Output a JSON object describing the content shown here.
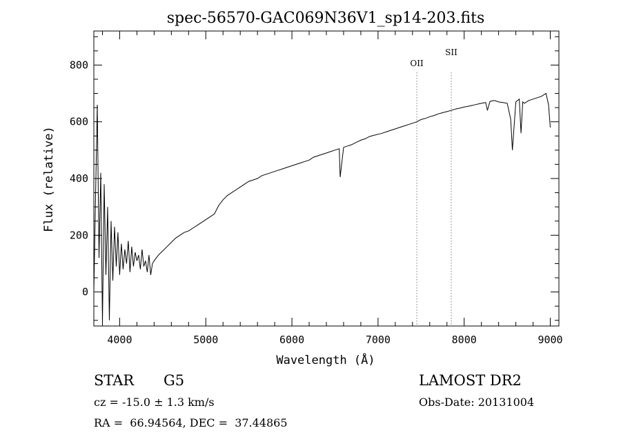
{
  "chart_data": {
    "type": "line",
    "title": "spec-56570-GAC069N36V1_sp14-203.fits",
    "xlabel": "Wavelength (Å)",
    "ylabel": "Flux (relative)",
    "xlim": [
      3700,
      9100
    ],
    "ylim": [
      -120,
      920
    ],
    "x_ticks": [
      4000,
      5000,
      6000,
      7000,
      8000,
      9000
    ],
    "y_ticks": [
      0,
      200,
      400,
      600,
      800
    ],
    "grid": false,
    "series": [
      {
        "x": [
          3700,
          3720,
          3740,
          3760,
          3780,
          3800,
          3820,
          3840,
          3860,
          3880,
          3900,
          3920,
          3940,
          3960,
          3980,
          4000,
          4020,
          4040,
          4060,
          4080,
          4100,
          4120,
          4140,
          4160,
          4180,
          4200,
          4220,
          4240,
          4260,
          4280,
          4300,
          4320,
          4340,
          4360,
          4380,
          4400,
          4450,
          4500,
          4550,
          4600,
          4650,
          4700,
          4750,
          4800,
          4850,
          4900,
          4950,
          5000,
          5050,
          5100,
          5150,
          5200,
          5250,
          5300,
          5350,
          5400,
          5450,
          5500,
          5550,
          5600,
          5650,
          5700,
          5750,
          5800,
          5850,
          5900,
          5950,
          6000,
          6050,
          6100,
          6150,
          6200,
          6250,
          6300,
          6350,
          6400,
          6450,
          6500,
          6550,
          6560,
          6600,
          6650,
          6700,
          6750,
          6800,
          6850,
          6900,
          6950,
          7000,
          7050,
          7100,
          7150,
          7200,
          7250,
          7300,
          7350,
          7400,
          7450,
          7500,
          7550,
          7600,
          7650,
          7700,
          7750,
          7800,
          7850,
          7900,
          7950,
          8000,
          8050,
          8100,
          8150,
          8200,
          8250,
          8270,
          8300,
          8350,
          8400,
          8450,
          8500,
          8540,
          8560,
          8600,
          8640,
          8660,
          8680,
          8700,
          8750,
          8800,
          8850,
          8900,
          8950,
          8980,
          9000
        ],
        "y": [
          0,
          340,
          660,
          120,
          420,
          -110,
          380,
          60,
          300,
          -100,
          250,
          40,
          230,
          90,
          210,
          60,
          170,
          80,
          150,
          100,
          180,
          70,
          160,
          90,
          140,
          110,
          130,
          80,
          150,
          90,
          110,
          70,
          130,
          60,
          100,
          110,
          130,
          145,
          160,
          175,
          190,
          200,
          210,
          215,
          225,
          235,
          245,
          255,
          265,
          275,
          305,
          325,
          340,
          350,
          360,
          370,
          380,
          390,
          395,
          400,
          410,
          415,
          420,
          425,
          430,
          435,
          440,
          445,
          450,
          455,
          460,
          465,
          475,
          480,
          485,
          490,
          495,
          500,
          505,
          405,
          510,
          515,
          520,
          528,
          535,
          540,
          548,
          552,
          556,
          560,
          565,
          570,
          575,
          580,
          585,
          590,
          595,
          600,
          608,
          612,
          618,
          622,
          628,
          632,
          636,
          640,
          645,
          648,
          652,
          655,
          658,
          662,
          665,
          668,
          640,
          672,
          675,
          670,
          668,
          665,
          610,
          500,
          670,
          680,
          560,
          670,
          665,
          675,
          680,
          685,
          690,
          700,
          660,
          580
        ]
      }
    ],
    "annotations": [
      {
        "label": "OII",
        "x": 7450
      },
      {
        "label": "SII",
        "x": 7850
      }
    ]
  },
  "info": {
    "object_class": "STAR",
    "subclass": "G5",
    "redshift": "cz = -15.0 ± 1.3 km/s",
    "coords": "RA =  66.94564, DEC =  37.44865",
    "survey": "LAMOST DR2",
    "obs_date": "Obs-Date: 20131004"
  }
}
